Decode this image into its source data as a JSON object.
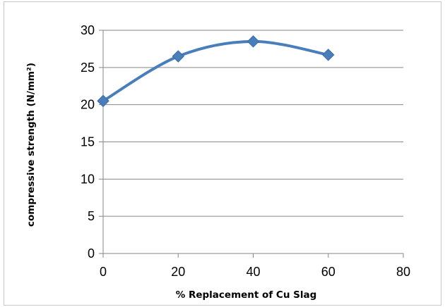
{
  "chart_data": {
    "type": "line",
    "title": "",
    "xlabel": "% Replacement of Cu Slag",
    "ylabel": "compressive strength (N/mm²)",
    "xlim": [
      0,
      80
    ],
    "ylim": [
      0,
      30
    ],
    "x_ticks": [
      0,
      20,
      40,
      60,
      80
    ],
    "y_ticks": [
      0,
      5,
      10,
      15,
      20,
      25,
      30
    ],
    "grid": "horizontal major gridlines",
    "legend": "none",
    "series": [
      {
        "x": [
          0,
          20,
          40,
          60
        ],
        "values": [
          20.5,
          26.5,
          28.5,
          26.7
        ],
        "color": "#4a7ebb",
        "marker": "diamond",
        "smooth": true
      }
    ]
  }
}
